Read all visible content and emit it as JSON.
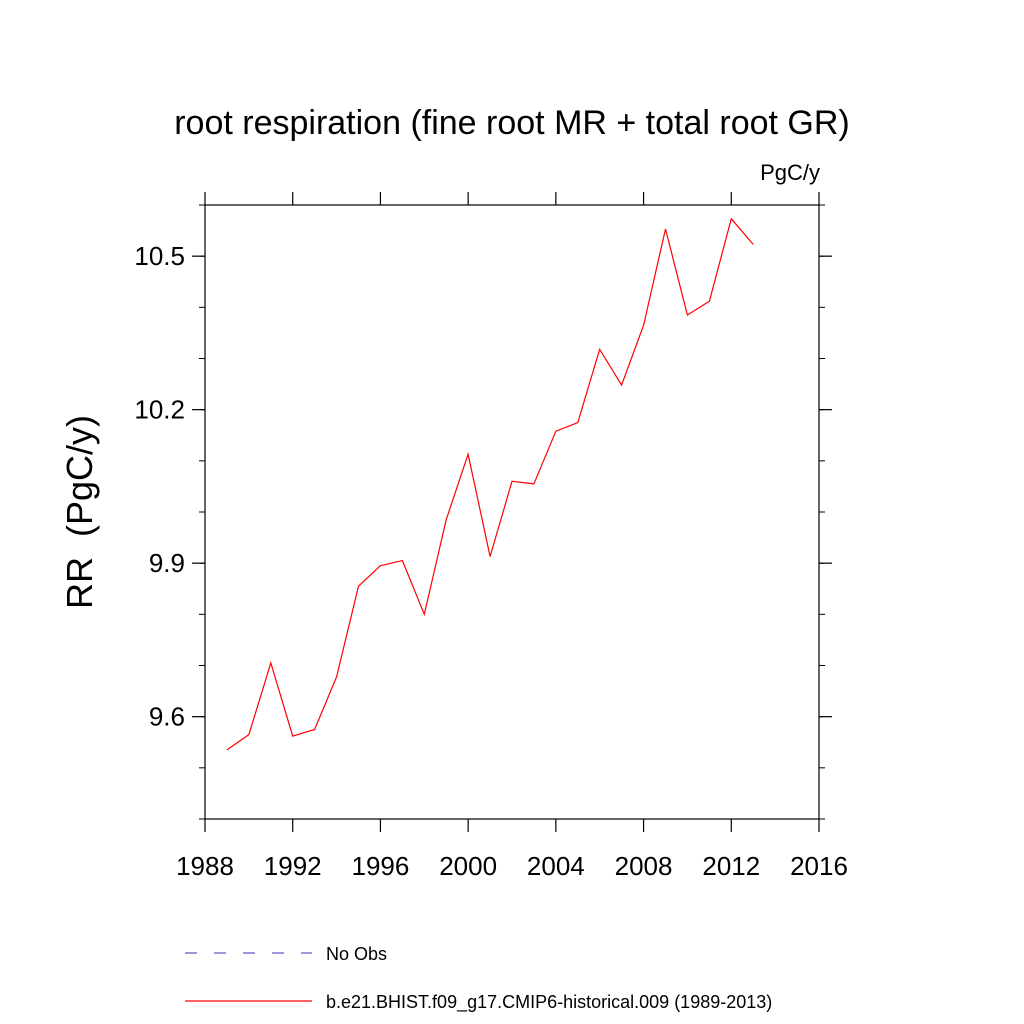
{
  "chart_data": {
    "type": "line",
    "title": "root respiration (fine root MR + total root GR)",
    "units": "PgC/y",
    "xlabel": "",
    "ylabel": "RR  (PgC/y)",
    "xlim": [
      1988,
      2016
    ],
    "ylim": [
      9.4,
      10.6
    ],
    "x_ticks": [
      "1988",
      "1992",
      "1996",
      "2000",
      "2004",
      "2008",
      "2012",
      "2016"
    ],
    "y_ticks": [
      "9.6",
      "9.9",
      "10.2",
      "10.5"
    ],
    "series": [
      {
        "name": "b.e21.BHIST.f09_g17.CMIP6-historical.009 (1989-2013)",
        "color": "#ff0000",
        "style": "solid",
        "x": [
          1989,
          1990,
          1991,
          1992,
          1993,
          1994,
          1995,
          1996,
          1997,
          1998,
          1999,
          2000,
          2001,
          2002,
          2003,
          2004,
          2005,
          2006,
          2007,
          2008,
          2009,
          2010,
          2011,
          2012,
          2013
        ],
        "y": [
          9.535,
          9.565,
          9.705,
          9.562,
          9.575,
          9.678,
          9.855,
          9.895,
          9.905,
          9.8,
          9.985,
          10.113,
          9.913,
          10.06,
          10.055,
          10.158,
          10.175,
          10.318,
          10.248,
          10.365,
          10.553,
          10.385,
          10.412,
          10.573,
          10.523
        ]
      }
    ],
    "legend": [
      {
        "label": "No Obs",
        "color": "#5c5cc8",
        "style": "dashed"
      },
      {
        "label": "b.e21.BHIST.f09_g17.CMIP6-historical.009 (1989-2013)",
        "color": "#ff0000",
        "style": "solid"
      }
    ],
    "legend_position": "bottom-center",
    "grid": false
  }
}
